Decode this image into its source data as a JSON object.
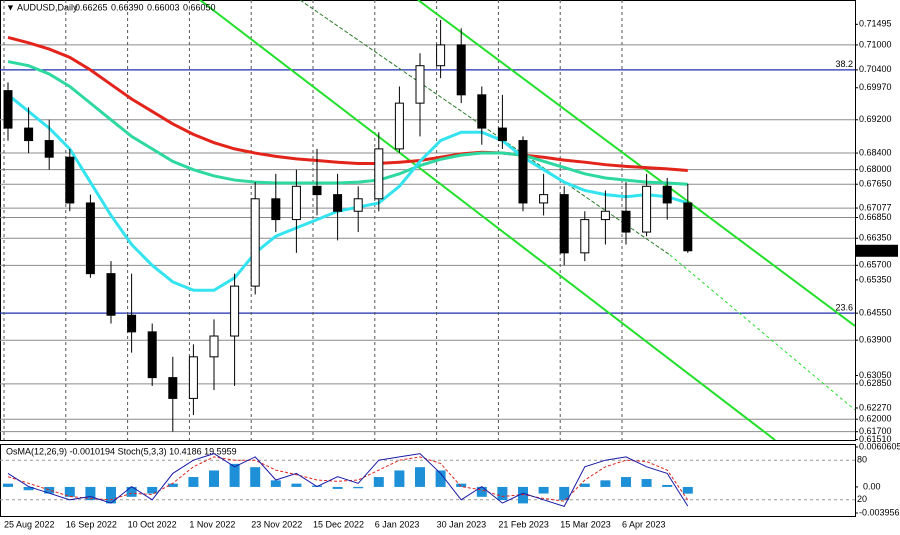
{
  "chart_data": {
    "type": "candlestick",
    "title": "AUDUSD,Daily",
    "quote": [
      {
        "value": 0.66265,
        "label": "0.66265"
      },
      {
        "value": 0.6639,
        "label": "0.66390"
      },
      {
        "value": 0.66003,
        "label": "0.66003"
      },
      {
        "value": 0.6605,
        "label": "0.66050"
      }
    ],
    "categories": [
      "25 Aug 2022",
      null,
      null,
      "16 Sep 2022",
      null,
      null,
      "10 Oct 2022",
      null,
      null,
      "1 Nov 2022",
      null,
      null,
      "23 Nov 2022",
      null,
      null,
      "15 Dec 2022",
      null,
      null,
      "6 Jan 2023",
      null,
      null,
      "30 Jan 2023",
      null,
      null,
      "21 Feb 2023",
      null,
      null,
      "15 Mar 2023",
      null,
      null,
      "6 Apr 2023",
      null,
      null,
      null
    ],
    "open": [
      0.699,
      0.69,
      0.687,
      0.683,
      0.672,
      0.655,
      0.645,
      0.641,
      0.63,
      0.625,
      0.635,
      0.64,
      0.652,
      0.673,
      0.668,
      0.676,
      0.674,
      0.67,
      0.673,
      0.685,
      0.696,
      0.705,
      0.71,
      0.698,
      0.69,
      0.687,
      0.672,
      0.674,
      0.66,
      0.668,
      0.67,
      0.665,
      0.676,
      0.672
    ],
    "high": [
      0.701,
      0.695,
      0.692,
      0.685,
      0.674,
      0.658,
      0.655,
      0.643,
      0.635,
      0.638,
      0.644,
      0.655,
      0.677,
      0.679,
      0.68,
      0.685,
      0.679,
      0.676,
      0.689,
      0.7,
      0.708,
      0.716,
      0.714,
      0.7,
      0.698,
      0.688,
      0.679,
      0.676,
      0.67,
      0.675,
      0.677,
      0.679,
      0.678,
      0.6766
    ],
    "low": [
      0.687,
      0.684,
      0.68,
      0.67,
      0.654,
      0.643,
      0.636,
      0.628,
      0.617,
      0.621,
      0.627,
      0.628,
      0.65,
      0.665,
      0.66,
      0.669,
      0.663,
      0.665,
      0.67,
      0.684,
      0.688,
      0.702,
      0.696,
      0.686,
      0.685,
      0.67,
      0.669,
      0.657,
      0.658,
      0.662,
      0.662,
      0.664,
      0.668,
      0.66
    ],
    "close": [
      0.69,
      0.687,
      0.683,
      0.672,
      0.655,
      0.645,
      0.641,
      0.63,
      0.625,
      0.635,
      0.64,
      0.652,
      0.673,
      0.668,
      0.676,
      0.674,
      0.67,
      0.673,
      0.685,
      0.696,
      0.705,
      0.71,
      0.698,
      0.69,
      0.687,
      0.672,
      0.674,
      0.66,
      0.668,
      0.67,
      0.665,
      0.676,
      0.672,
      0.6605
    ],
    "candle_color": "#000000",
    "moving_averages": [
      {
        "color": "#e3241b",
        "values": [
          0.7118,
          0.7105,
          0.709,
          0.707,
          0.704,
          0.7005,
          0.697,
          0.694,
          0.691,
          0.6885,
          0.6865,
          0.685,
          0.684,
          0.6832,
          0.6826,
          0.6822,
          0.6818,
          0.6815,
          0.6815,
          0.6818,
          0.6822,
          0.683,
          0.6838,
          0.6842,
          0.684,
          0.6835,
          0.683,
          0.6823,
          0.6818,
          0.6812,
          0.6808,
          0.6805,
          0.6802,
          0.6798
        ]
      },
      {
        "color": "#2ed8a0",
        "values": [
          0.706,
          0.705,
          0.703,
          0.7,
          0.696,
          0.692,
          0.688,
          0.685,
          0.682,
          0.68,
          0.6785,
          0.6775,
          0.677,
          0.6768,
          0.6768,
          0.6768,
          0.6768,
          0.677,
          0.6775,
          0.679,
          0.681,
          0.6825,
          0.6835,
          0.684,
          0.684,
          0.6835,
          0.682,
          0.6805,
          0.679,
          0.678,
          0.6775,
          0.677,
          0.6768,
          0.6765
        ]
      },
      {
        "color": "#33e4f0",
        "values": [
          0.698,
          0.694,
          0.69,
          0.685,
          0.677,
          0.669,
          0.662,
          0.657,
          0.653,
          0.651,
          0.651,
          0.654,
          0.66,
          0.664,
          0.666,
          0.668,
          0.67,
          0.671,
          0.672,
          0.676,
          0.682,
          0.687,
          0.689,
          0.689,
          0.687,
          0.683,
          0.68,
          0.677,
          0.675,
          0.674,
          0.6735,
          0.674,
          0.6735,
          0.672
        ]
      }
    ],
    "ylim": [
      0.615,
      0.7208
    ],
    "yticks": [
      {
        "value": 0.71495,
        "label": "0.71495"
      },
      {
        "value": 0.71,
        "label": "0.71000"
      },
      {
        "value": 0.704,
        "label": "0.70400"
      },
      {
        "value": 0.6997,
        "label": "0.69970"
      },
      {
        "value": 0.692,
        "label": "0.69200"
      },
      {
        "value": 0.684,
        "label": "0.68400"
      },
      {
        "value": 0.68,
        "label": "0.68000"
      },
      {
        "value": 0.6765,
        "label": "0.67650"
      },
      {
        "value": 0.67077,
        "label": "0.67077"
      },
      {
        "value": 0.6685,
        "label": "0.66850"
      },
      {
        "value": 0.6635,
        "label": "0.66350"
      },
      {
        "value": 0.657,
        "label": "0.65700"
      },
      {
        "value": 0.6535,
        "label": "0.65350"
      },
      {
        "value": 0.6455,
        "label": "0.64550"
      },
      {
        "value": 0.639,
        "label": "0.63900"
      },
      {
        "value": 0.6305,
        "label": "0.63050"
      },
      {
        "value": 0.6285,
        "label": "0.62850"
      },
      {
        "value": 0.6227,
        "label": "0.62270"
      },
      {
        "value": 0.62,
        "label": "0.62000"
      },
      {
        "value": 0.617,
        "label": "0.61700"
      },
      {
        "value": 0.6151,
        "label": "0.61510"
      }
    ],
    "current_price": {
      "value": 0.6605,
      "label": "0.66050"
    },
    "horizontal_levels": [
      0.71,
      0.692,
      0.684,
      0.68,
      0.6765,
      0.67077,
      0.6685,
      0.6635,
      0.657,
      0.639,
      0.6285,
      0.62,
      0.617
    ],
    "level_color": "#8c8c8c",
    "fib_levels": [
      {
        "value": 0.704,
        "label": "38.2"
      },
      {
        "value": 0.6455,
        "label": "23.6"
      }
    ],
    "fib_color": "#1f2fb0",
    "indicator": {
      "title": "OsMA(12,26,9) -0.0010194 Stoch(5,3,3) 10.4186 19.5959",
      "osma": {
        "color": "#1e90d8",
        "values": [
          0.0005,
          -0.0005,
          -0.001,
          -0.0015,
          -0.002,
          -0.0025,
          -0.0015,
          -0.001,
          0.0005,
          0.0015,
          0.0025,
          0.0035,
          0.003,
          0.001,
          0.0005,
          0.0002,
          -0.0003,
          -0.0002,
          0.0015,
          0.0025,
          0.003,
          0.0025,
          0.0005,
          -0.0015,
          -0.002,
          -0.0025,
          -0.001,
          -0.002,
          0.0005,
          0.001,
          0.0015,
          0.0012,
          0.0003,
          -0.0010194
        ],
        "ylim": [
          -0.003956,
          0.0060605
        ],
        "yticks": [
          0.0060605,
          {
            "value": 0,
            "label": "0.00"
          },
          -0.003956
        ]
      },
      "stoch": {
        "ylim": [
          0,
          100
        ],
        "yticks": [
          80,
          20
        ],
        "main": {
          "color": "#1a1aa8",
          "values": [
            60,
            40,
            30,
            20,
            25,
            15,
            40,
            20,
            60,
            80,
            90,
            70,
            85,
            50,
            60,
            40,
            55,
            45,
            80,
            85,
            90,
            60,
            20,
            40,
            15,
            30,
            20,
            10,
            70,
            80,
            85,
            70,
            60,
            10.4186
          ]
        },
        "signal": {
          "color": "#e3241b",
          "values": [
            55,
            45,
            35,
            25,
            22,
            20,
            30,
            28,
            45,
            70,
            85,
            80,
            80,
            65,
            58,
            50,
            48,
            50,
            65,
            80,
            85,
            75,
            40,
            35,
            25,
            28,
            22,
            18,
            50,
            70,
            80,
            78,
            65,
            19.5959
          ]
        }
      }
    }
  }
}
